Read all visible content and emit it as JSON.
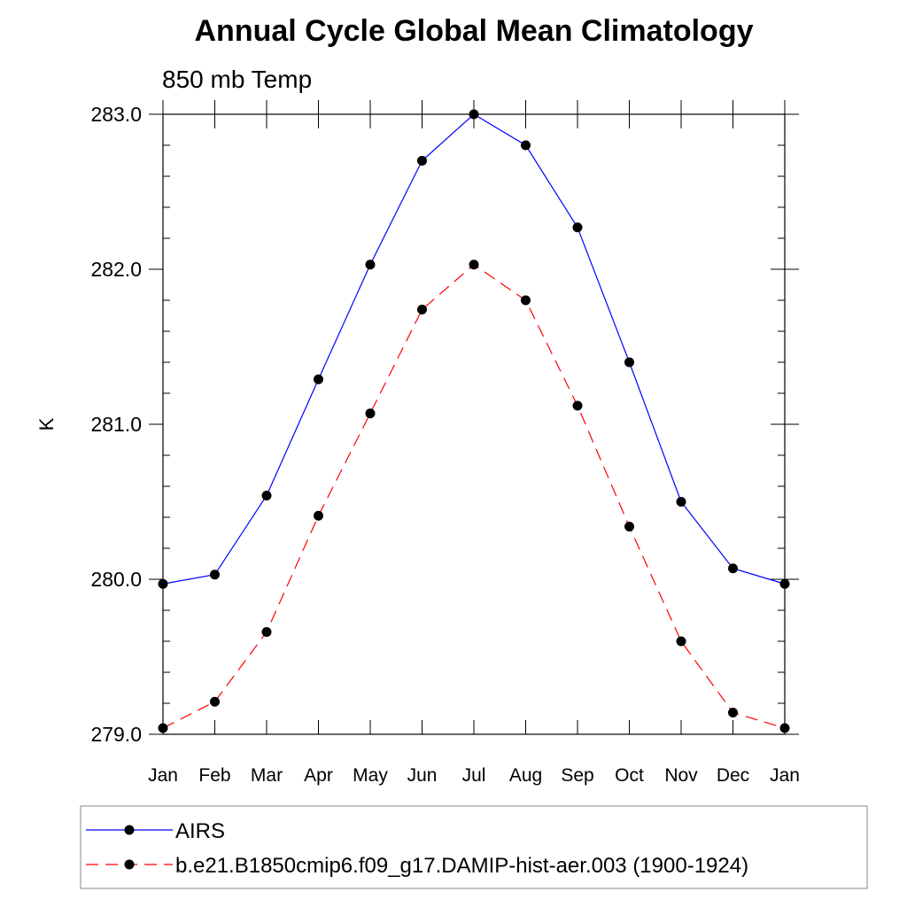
{
  "chart_data": {
    "type": "line",
    "title": "Annual Cycle Global Mean Climatology",
    "subtitle": "850 mb Temp",
    "ylabel": "K",
    "xlabel": "",
    "ylim": [
      279.0,
      283.0
    ],
    "yticks": [
      "279.0",
      "280.0",
      "281.0",
      "282.0",
      "283.0"
    ],
    "categories": [
      "Jan",
      "Feb",
      "Mar",
      "Apr",
      "May",
      "Jun",
      "Jul",
      "Aug",
      "Sep",
      "Oct",
      "Nov",
      "Dec",
      "Jan"
    ],
    "series": [
      {
        "name": "AIRS",
        "color": "#0000ff",
        "style": "solid",
        "values": [
          279.97,
          280.03,
          280.54,
          281.29,
          282.03,
          282.7,
          283.0,
          282.8,
          282.27,
          281.4,
          280.5,
          280.07,
          279.97
        ]
      },
      {
        "name": "b.e21.B1850cmip6.f09_g17.DAMIP-hist-aer.003 (1900-1924)",
        "color": "#ff0000",
        "style": "dashed",
        "values": [
          279.04,
          279.21,
          279.66,
          280.41,
          281.07,
          281.74,
          282.03,
          281.8,
          281.12,
          280.34,
          279.6,
          279.14,
          279.04
        ]
      }
    ],
    "legend_position": "bottom"
  }
}
